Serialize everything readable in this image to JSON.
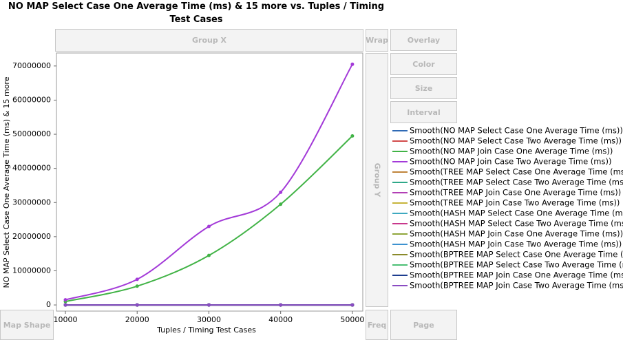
{
  "chart_data": {
    "type": "line",
    "title": "NO MAP Select Case One Average Time (ms) & 15 more vs. Tuples / Timing Test Cases",
    "x_label": "Tuples / Timing Test Cases",
    "y_label": "NO MAP Select Case One Average Time (ms) & 15 more",
    "x": [
      10000,
      20000,
      30000,
      40000,
      50000
    ],
    "xlim": [
      8750,
      51450
    ],
    "xticks": [
      10000,
      20000,
      30000,
      40000,
      50000
    ],
    "ylim": [
      -1800000,
      73800000
    ],
    "yticks": [
      0,
      10000000,
      20000000,
      30000000,
      40000000,
      50000000,
      60000000,
      70000000
    ],
    "series": [
      {
        "name": "Smooth(NO MAP Select Case One Average Time (ms))",
        "color": "#2f6ab5",
        "values": [
          0,
          0,
          0,
          0,
          0
        ]
      },
      {
        "name": "Smooth(NO MAP Select Case Two Average Time (ms))",
        "color": "#d24a4a",
        "values": [
          0,
          0,
          0,
          0,
          0
        ]
      },
      {
        "name": "Smooth(NO MAP Join Case One Average Time (ms))",
        "color": "#41b346",
        "values": [
          1000000,
          5500000,
          14500000,
          29500000,
          49500000
        ]
      },
      {
        "name": "Smooth(NO MAP Join Case Two Average Time (ms))",
        "color": "#a33ad8",
        "values": [
          1500000,
          7500000,
          23000000,
          33000000,
          70500000
        ]
      },
      {
        "name": "Smooth(TREE MAP Select Case One Average Time (ms))",
        "color": "#c0843a",
        "values": [
          0,
          0,
          0,
          0,
          0
        ]
      },
      {
        "name": "Smooth(TREE MAP Select Case Two Average Time (ms))",
        "color": "#2fa889",
        "values": [
          0,
          0,
          0,
          0,
          0
        ]
      },
      {
        "name": "Smooth(TREE MAP Join Case One Average Time (ms))",
        "color": "#b23fb5",
        "values": [
          0,
          0,
          0,
          0,
          0
        ]
      },
      {
        "name": "Smooth(TREE MAP Join Case Two Average Time (ms))",
        "color": "#c6b43a",
        "values": [
          0,
          0,
          0,
          0,
          0
        ]
      },
      {
        "name": "Smooth(HASH MAP Select Case One Average Time (ms))",
        "color": "#3ea9c0",
        "values": [
          0,
          0,
          0,
          0,
          0
        ]
      },
      {
        "name": "Smooth(HASH MAP Select Case Two Average Time (ms))",
        "color": "#c8388c",
        "values": [
          0,
          0,
          0,
          0,
          0
        ]
      },
      {
        "name": "Smooth(HASH MAP Join Case One Average Time (ms))",
        "color": "#8fa63a",
        "values": [
          0,
          0,
          0,
          0,
          0
        ]
      },
      {
        "name": "Smooth(HASH MAP Join Case Two Average Time (ms))",
        "color": "#3d92d0",
        "values": [
          0,
          0,
          0,
          0,
          0
        ]
      },
      {
        "name": "Smooth(BPTREE MAP Select Case One Average Time (ms))",
        "color": "#8a8a2a",
        "values": [
          0,
          0,
          0,
          0,
          0
        ]
      },
      {
        "name": "Smooth(BPTREE MAP Select Case Two Average Time (ms))",
        "color": "#4bbf74",
        "values": [
          0,
          0,
          0,
          0,
          0
        ]
      },
      {
        "name": "Smooth(BPTREE MAP Join Case One Average Time (ms))",
        "color": "#1d3d8f",
        "values": [
          0,
          0,
          0,
          0,
          0
        ]
      },
      {
        "name": "Smooth(BPTREE MAP Join Case Two Average Time (ms))",
        "color": "#8a4cc2",
        "values": [
          0,
          0,
          0,
          0,
          0
        ]
      }
    ]
  },
  "drop_zones": {
    "group_x": "Group X",
    "wrap": "Wrap",
    "overlay": "Overlay",
    "color": "Color",
    "size": "Size",
    "interval": "Interval",
    "group_y": "Group Y",
    "map_shape": "Map Shape",
    "freq": "Freq",
    "page": "Page"
  }
}
